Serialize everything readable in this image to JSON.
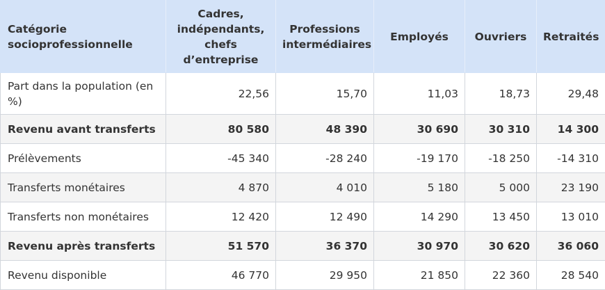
{
  "table": {
    "headers": [
      "Catégorie socioprofessionnelle",
      "Cadres, indépendants, chefs d’entreprise",
      "Professions intermédiaires",
      "Employés",
      "Ouvriers",
      "Retraités"
    ],
    "rows": [
      {
        "label": "Part dans la population (en %)",
        "values": [
          "22,56",
          "15,70",
          "11,03",
          "18,73",
          "29,48"
        ]
      },
      {
        "label": "Revenu avant transferts",
        "values": [
          "80 580",
          "48 390",
          "30 690",
          "30 310",
          "14 300"
        ]
      },
      {
        "label": "Prélèvements",
        "values": [
          "-45 340",
          "-28 240",
          "-19 170",
          "-18 250",
          "-14 310"
        ]
      },
      {
        "label": "Transferts monétaires",
        "values": [
          "4 870",
          "4 010",
          "5 180",
          "5 000",
          "23 190"
        ]
      },
      {
        "label": "Transferts non monétaires",
        "values": [
          "12 420",
          "12 490",
          "14 290",
          "13 450",
          "13 010"
        ]
      },
      {
        "label": "Revenu après transferts",
        "values": [
          "51 570",
          "36 370",
          "30 970",
          "30 620",
          "36 060"
        ]
      },
      {
        "label": "Revenu disponible",
        "values": [
          "46 770",
          "29 950",
          "21 850",
          "22 360",
          "28 540"
        ]
      }
    ]
  }
}
